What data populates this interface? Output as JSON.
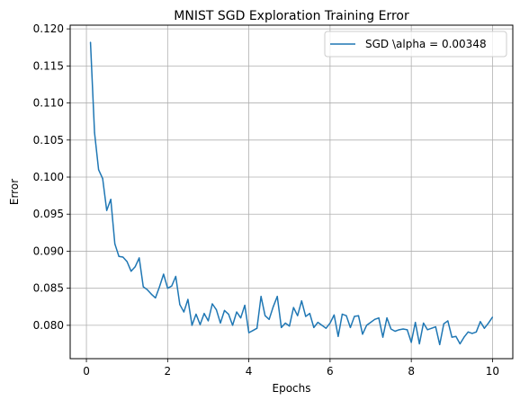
{
  "chart_data": {
    "type": "line",
    "title": "MNIST SGD Exploration Training Error",
    "xlabel": "Epochs",
    "ylabel": "Error",
    "xlim": [
      -0.4,
      10.5
    ],
    "ylim": [
      0.0755,
      0.1205
    ],
    "x_ticks": [
      0,
      2,
      4,
      6,
      8,
      10
    ],
    "x_tick_labels": [
      "0",
      "2",
      "4",
      "6",
      "8",
      "10"
    ],
    "y_ticks": [
      0.08,
      0.085,
      0.09,
      0.095,
      0.1,
      0.105,
      0.11,
      0.115,
      0.12
    ],
    "y_tick_labels": [
      "0.080",
      "0.085",
      "0.090",
      "0.095",
      "0.100",
      "0.105",
      "0.110",
      "0.115",
      "0.120"
    ],
    "grid": true,
    "legend_position": "top-right",
    "series": [
      {
        "name": "SGD \\alpha = 0.00348",
        "color": "#1f77b4",
        "x": [
          0.1,
          0.2,
          0.3,
          0.4,
          0.5,
          0.6,
          0.7,
          0.8,
          0.9,
          1.0,
          1.1,
          1.2,
          1.3,
          1.4,
          1.5,
          1.6,
          1.7,
          1.8,
          1.9,
          2.0,
          2.1,
          2.2,
          2.3,
          2.4,
          2.5,
          2.6,
          2.7,
          2.8,
          2.9,
          3.0,
          3.1,
          3.2,
          3.3,
          3.4,
          3.5,
          3.6,
          3.7,
          3.8,
          3.9,
          4.0,
          4.1,
          4.2,
          4.3,
          4.4,
          4.5,
          4.6,
          4.7,
          4.8,
          4.9,
          5.0,
          5.1,
          5.2,
          5.3,
          5.4,
          5.5,
          5.6,
          5.7,
          5.8,
          5.9,
          6.0,
          6.1,
          6.2,
          6.3,
          6.4,
          6.5,
          6.6,
          6.7,
          6.8,
          6.9,
          7.0,
          7.1,
          7.2,
          7.3,
          7.4,
          7.5,
          7.6,
          7.7,
          7.8,
          7.9,
          8.0,
          8.1,
          8.2,
          8.3,
          8.4,
          8.5,
          8.6,
          8.7,
          8.8,
          8.9,
          9.0,
          9.1,
          9.2,
          9.3,
          9.4,
          9.5,
          9.6,
          9.7,
          9.8,
          9.9,
          10.0
        ],
        "values": [
          0.1182,
          0.106,
          0.101,
          0.0998,
          0.0955,
          0.097,
          0.091,
          0.0893,
          0.0892,
          0.0886,
          0.0873,
          0.0879,
          0.0891,
          0.0852,
          0.0848,
          0.0842,
          0.0837,
          0.0852,
          0.0869,
          0.085,
          0.0853,
          0.0866,
          0.0828,
          0.0818,
          0.0835,
          0.08,
          0.0815,
          0.0801,
          0.0816,
          0.0806,
          0.0829,
          0.0821,
          0.0803,
          0.082,
          0.0815,
          0.08,
          0.0818,
          0.081,
          0.0827,
          0.079,
          0.0793,
          0.0796,
          0.0839,
          0.0813,
          0.0808,
          0.0825,
          0.0839,
          0.0797,
          0.0803,
          0.0799,
          0.0824,
          0.0813,
          0.0833,
          0.0812,
          0.0816,
          0.0797,
          0.0804,
          0.08,
          0.0796,
          0.0803,
          0.0814,
          0.0785,
          0.0815,
          0.0813,
          0.0797,
          0.0812,
          0.0813,
          0.0788,
          0.08,
          0.0804,
          0.0808,
          0.081,
          0.0784,
          0.081,
          0.0795,
          0.0792,
          0.0794,
          0.0795,
          0.0794,
          0.0777,
          0.0804,
          0.0775,
          0.0803,
          0.0794,
          0.0796,
          0.0798,
          0.0774,
          0.0802,
          0.0806,
          0.0784,
          0.0785,
          0.0775,
          0.0784,
          0.0791,
          0.0789,
          0.0791,
          0.0805,
          0.0796,
          0.0803,
          0.0811
        ]
      }
    ]
  }
}
